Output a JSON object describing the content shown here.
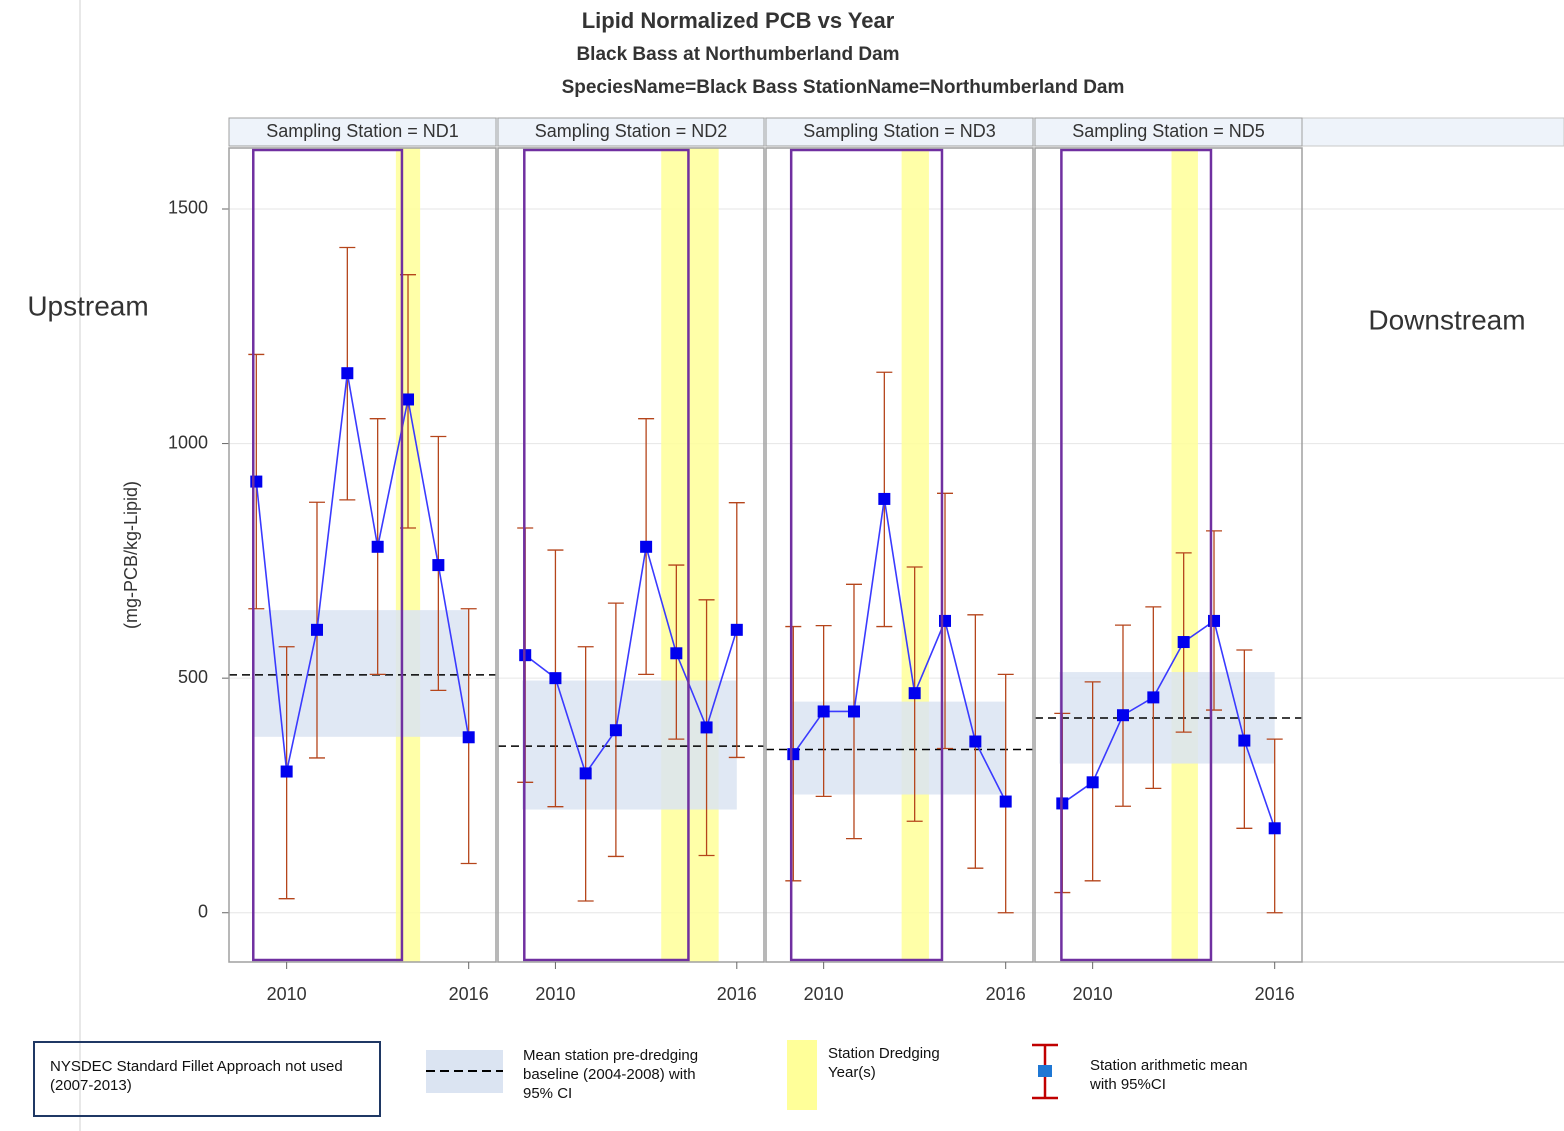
{
  "chart_data": {
    "type": "line",
    "title": "Lipid Normalized PCB vs Year",
    "subtitle": "Black Bass at Northumberland Dam",
    "subtitle2": "SpeciesName=Black Bass StationName=Northumberland Dam",
    "y_label": "(mg-PCB/kg-Lipid)",
    "ylim": [
      -105,
      1630
    ],
    "yticks": [
      0,
      500,
      1000,
      1500
    ],
    "xlim": [
      2008.1,
      2016.9
    ],
    "xticks": [
      2010,
      2016
    ],
    "grid": true,
    "line_color": "#3a3aff",
    "marker_color": "#0000ee",
    "error_color": "#b5451b",
    "band_color": "#dbe4f2",
    "dredging_color": "#ffff99",
    "box_color": "#7030a0",
    "annotations": {
      "upstream": "Upstream",
      "downstream": "Downstream"
    },
    "panels": [
      {
        "title": "Sampling Station = ND1",
        "x": [
          2009,
          2010,
          2011,
          2012,
          2013,
          2014,
          2015,
          2016
        ],
        "values": [
          919,
          301,
          603,
          1150,
          780,
          1094,
          741,
          374
        ],
        "ci_low": [
          648,
          30,
          330,
          880,
          508,
          820,
          474,
          105
        ],
        "ci_high": [
          1190,
          567,
          875,
          1418,
          1053,
          1360,
          1015,
          648
        ],
        "baseline": 507,
        "baseline_ci": [
          375,
          645
        ],
        "dredging": [
          2013.6,
          2014.4
        ],
        "excluded": [
          2008.9,
          2013.8
        ]
      },
      {
        "title": "Sampling Station = ND2",
        "x": [
          2009,
          2010,
          2011,
          2012,
          2013,
          2014,
          2015,
          2016
        ],
        "values": [
          549,
          500,
          297,
          389,
          780,
          553,
          395,
          603
        ],
        "ci_low": [
          278,
          226,
          25,
          120,
          508,
          370,
          122,
          331
        ],
        "ci_high": [
          820,
          773,
          567,
          660,
          1053,
          741,
          667,
          874
        ],
        "baseline": 355,
        "baseline_ci": [
          220,
          495
        ],
        "dredging": [
          2013.5,
          2015.4
        ],
        "excluded": [
          2008.97,
          2014.4
        ]
      },
      {
        "title": "Sampling Station = ND3",
        "x": [
          2009,
          2010,
          2011,
          2012,
          2013,
          2014,
          2015,
          2016
        ],
        "values": [
          338,
          429,
          429,
          882,
          468,
          622,
          365,
          237
        ],
        "ci_low": [
          68,
          248,
          158,
          610,
          195,
          350,
          95,
          0
        ],
        "ci_high": [
          610,
          612,
          700,
          1152,
          737,
          894,
          635,
          508
        ],
        "baseline": 348,
        "baseline_ci": [
          252,
          450
        ],
        "dredging": [
          2012.57,
          2013.47
        ],
        "excluded": [
          2008.93,
          2013.9
        ]
      },
      {
        "title": "Sampling Station = ND5",
        "x": [
          2009,
          2010,
          2011,
          2012,
          2013,
          2014,
          2015,
          2016
        ],
        "values": [
          233,
          278,
          421,
          459,
          577,
          622,
          367,
          180
        ],
        "ci_low": [
          43,
          68,
          227,
          265,
          385,
          432,
          180,
          0
        ],
        "ci_high": [
          425,
          492,
          613,
          652,
          767,
          814,
          560,
          370
        ],
        "baseline": 415,
        "baseline_ci": [
          318,
          513
        ],
        "dredging": [
          2012.6,
          2013.47
        ],
        "excluded": [
          2008.97,
          2013.9
        ]
      }
    ],
    "legend": {
      "excluded": "NYSDEC Standard Fillet Approach not used (2007-2013)",
      "baseline": "Mean station pre-dredging baseline (2004-2008) with 95% CI",
      "dredging": "Station Dredging Year(s)",
      "mean": "Station arithmetic mean with 95%CI"
    }
  }
}
